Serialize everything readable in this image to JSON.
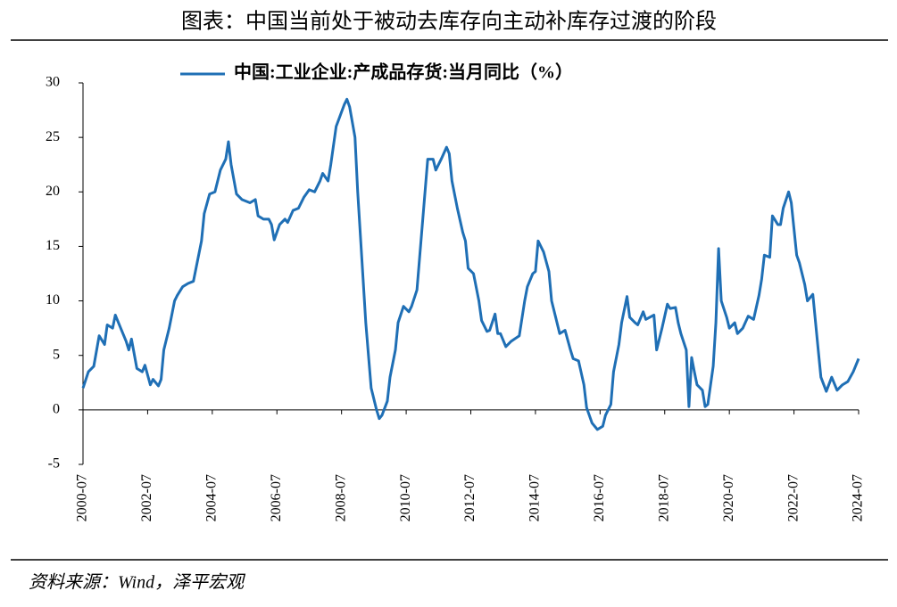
{
  "chart_data": {
    "type": "line",
    "title": "图表：中国当前处于被动去库存向主动补库存过渡的阶段",
    "source": "资料来源：Wind，泽平宏观",
    "xlim": [
      "2000-07",
      "2024-07"
    ],
    "xticks": [
      "2000-07",
      "2002-07",
      "2004-07",
      "2006-07",
      "2008-07",
      "2010-07",
      "2012-07",
      "2014-07",
      "2016-07",
      "2018-07",
      "2020-07",
      "2022-07",
      "2024-07"
    ],
    "ylim": [
      -5,
      30
    ],
    "yticks": [
      -5,
      0,
      5,
      10,
      15,
      20,
      25,
      30
    ],
    "legend": "top",
    "x": [
      "2000-07",
      "2000-09",
      "2000-11",
      "2001-01",
      "2001-03",
      "2001-04",
      "2001-06",
      "2001-07",
      "2001-09",
      "2001-11",
      "2001-12",
      "2002-01",
      "2002-03",
      "2002-05",
      "2002-06",
      "2002-08",
      "2002-09",
      "2002-11",
      "2002-12",
      "2003-01",
      "2003-03",
      "2003-05",
      "2003-06",
      "2003-08",
      "2003-10",
      "2003-12",
      "2004-03",
      "2004-04",
      "2004-06",
      "2004-08",
      "2004-10",
      "2004-12",
      "2005-01",
      "2005-02",
      "2005-04",
      "2005-06",
      "2005-09",
      "2005-11",
      "2005-12",
      "2006-02",
      "2006-04",
      "2006-05",
      "2006-06",
      "2006-08",
      "2006-10",
      "2006-11",
      "2007-01",
      "2007-03",
      "2007-05",
      "2007-07",
      "2007-09",
      "2007-11",
      "2007-12",
      "2008-02",
      "2008-03",
      "2008-05",
      "2008-08",
      "2008-09",
      "2008-10",
      "2008-12",
      "2009-01",
      "2009-03",
      "2009-04",
      "2009-05",
      "2009-06",
      "2009-08",
      "2009-09",
      "2009-10",
      "2009-12",
      "2010-01",
      "2010-03",
      "2010-04",
      "2010-06",
      "2010-08",
      "2010-09",
      "2010-11",
      "2010-12",
      "2011-02",
      "2011-03",
      "2011-05",
      "2011-06",
      "2011-08",
      "2011-10",
      "2011-11",
      "2011-12",
      "2012-02",
      "2012-04",
      "2012-05",
      "2012-06",
      "2012-08",
      "2012-10",
      "2012-11",
      "2013-01",
      "2013-02",
      "2013-04",
      "2013-05",
      "2013-06",
      "2013-08",
      "2013-10",
      "2014-01",
      "2014-03",
      "2014-04",
      "2014-06",
      "2014-07",
      "2014-08",
      "2014-10",
      "2014-12",
      "2015-01",
      "2015-03",
      "2015-04",
      "2015-06",
      "2015-08",
      "2015-09",
      "2015-11",
      "2016-01",
      "2016-02",
      "2016-04",
      "2016-06",
      "2016-08",
      "2016-09",
      "2016-11",
      "2016-12",
      "2017-02",
      "2017-03",
      "2017-05",
      "2017-06",
      "2017-08",
      "2017-09",
      "2017-11",
      "2017-12",
      "2018-03",
      "2018-04",
      "2018-06",
      "2018-08",
      "2018-09",
      "2018-11",
      "2018-12",
      "2019-01",
      "2019-03",
      "2019-04",
      "2019-05",
      "2019-06",
      "2019-07",
      "2019-09",
      "2019-10",
      "2019-11",
      "2020-01",
      "2020-02",
      "2020-03",
      "2020-04",
      "2020-06",
      "2020-07",
      "2020-09",
      "2020-10",
      "2020-12",
      "2021-02",
      "2021-04",
      "2021-06",
      "2021-07",
      "2021-08",
      "2021-10",
      "2021-11",
      "2022-01",
      "2022-02",
      "2022-03",
      "2022-05",
      "2022-06",
      "2022-08",
      "2022-09",
      "2022-11",
      "2022-12",
      "2023-02",
      "2023-04",
      "2023-05",
      "2023-07",
      "2023-09",
      "2023-11",
      "2024-01",
      "2024-03",
      "2024-05",
      "2024-07"
    ],
    "series": [
      {
        "name": "中国:工业企业:产成品存货:当月同比（%）",
        "color": "#1f6fb5",
        "values": [
          2.0,
          3.5,
          4.0,
          6.8,
          6.0,
          7.8,
          7.5,
          8.7,
          7.5,
          6.3,
          5.5,
          6.5,
          3.8,
          3.5,
          4.1,
          2.3,
          2.8,
          2.2,
          2.8,
          5.5,
          7.5,
          10.0,
          10.5,
          11.3,
          11.6,
          11.8,
          15.5,
          18,
          19.8,
          20.0,
          22,
          23,
          24.6,
          22.5,
          19.8,
          19.3,
          19.0,
          19.3,
          17.8,
          17.5,
          17.5,
          17.0,
          15.6,
          17,
          17.5,
          17.2,
          18.3,
          18.5,
          19.5,
          20.2,
          20.0,
          21.0,
          21.7,
          21.0,
          22.5,
          26.0,
          28.0,
          28.5,
          27.8,
          25,
          20,
          12,
          8,
          5,
          2,
          0,
          -0.8,
          -0.5,
          0.8,
          3,
          5.5,
          8,
          9.5,
          9.0,
          9.5,
          11,
          14,
          20,
          23,
          23,
          22,
          23,
          24.1,
          23.5,
          21,
          18.5,
          16.3,
          15.5,
          13,
          12.5,
          10,
          8.2,
          7.2,
          7.3,
          8.8,
          7.0,
          7.0,
          5.8,
          6.3,
          6.8,
          10,
          11.3,
          12.5,
          12.7,
          15.5,
          14.5,
          12.7,
          10,
          8,
          7,
          7.3,
          5.5,
          4.7,
          4.5,
          2.3,
          0.2,
          -1.2,
          -1.8,
          -1.5,
          -0.5,
          0.5,
          3.5,
          6,
          8,
          10.4,
          8.5,
          8,
          7.8,
          9.0,
          8.3,
          8.7,
          5.5,
          7.5,
          9.7,
          9.3,
          9.4,
          8.0,
          7.0,
          5.5,
          0.3,
          4.8,
          3.5,
          2.3,
          1.8,
          0.3,
          0.5,
          4,
          8,
          14.8,
          10,
          8.5,
          7.5,
          8.0,
          7.0,
          7.5,
          8.6,
          8.3,
          10.5,
          12,
          14.2,
          14,
          17.8,
          17,
          17,
          18.5,
          20,
          19,
          14.2,
          13.5,
          11.5,
          10,
          10.6,
          5.5,
          3,
          1.7,
          3,
          1.8,
          2.3,
          2.6,
          3.5,
          4.7
        ]
      }
    ]
  }
}
